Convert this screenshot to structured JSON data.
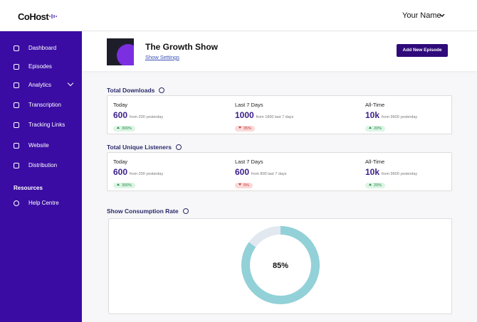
{
  "header": {
    "logo": "CoHost",
    "user": "Your Name"
  },
  "sidebar": {
    "items": [
      "Dashboard",
      "Episodes",
      "Analytics",
      "Transcription",
      "Tracking Links",
      "Website",
      "Distribution"
    ],
    "resources_heading": "Resources",
    "resources": [
      "Help Centre"
    ]
  },
  "show": {
    "title": "The Growth Show",
    "settings_link": "Show Settings",
    "button": "Add New Episode"
  },
  "stats": [
    {
      "title": "Total Downloads",
      "columns": [
        {
          "label": "Today",
          "value": "600",
          "comparison": "from 200 yesterday",
          "change": "300%",
          "trend": "up"
        },
        {
          "label": "Last 7 Days",
          "value": "1000",
          "comparison": "from 1800 last 7 days",
          "change": "35%",
          "trend": "down"
        },
        {
          "label": "All-Time",
          "value": "10k",
          "comparison": "from 9600 yesterday",
          "change": "20%",
          "trend": "up"
        }
      ]
    },
    {
      "title": "Total Unique Listeners",
      "columns": [
        {
          "label": "Today",
          "value": "600",
          "comparison": "from 200 yesterday",
          "change": "300%",
          "trend": "up"
        },
        {
          "label": "Last 7 Days",
          "value": "600",
          "comparison": "from 800 last 7 days",
          "change": "5%",
          "trend": "down"
        },
        {
          "label": "All-Time",
          "value": "10k",
          "comparison": "from 9600 yesterday",
          "change": "20%",
          "trend": "up"
        }
      ]
    }
  ],
  "consumption": {
    "title": "Show Consumption Rate",
    "value": 85,
    "value_label": "85%",
    "color": "#92d1d7",
    "track_color": "#e2e8ef"
  }
}
